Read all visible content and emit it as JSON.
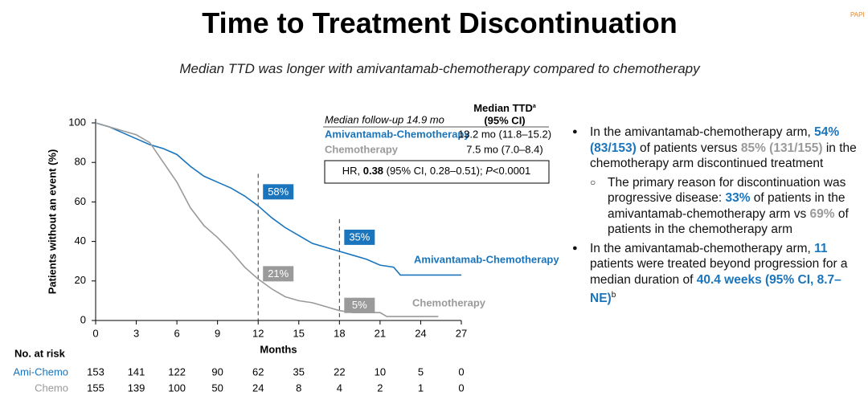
{
  "title": "Time to Treatment Discontinuation",
  "subtitle": "Median TTD was longer with amivantamab-chemotherapy compared to chemotherapy",
  "logo": "PAPI",
  "chart_data": {
    "type": "line",
    "y_label": "Patients without an event (%)",
    "x_label": "Months",
    "xlim": [
      0,
      27
    ],
    "xticks": [
      0,
      3,
      6,
      9,
      12,
      15,
      18,
      21,
      24,
      27
    ],
    "ylim": [
      0,
      100
    ],
    "yticks": [
      0,
      20,
      40,
      60,
      80,
      100
    ],
    "series": [
      {
        "name": "Amivantamab-Chemotherapy",
        "color": "#1a75bc",
        "x": [
          0,
          1,
          2,
          3,
          4,
          5,
          6,
          7,
          8,
          9,
          10,
          11,
          12,
          13,
          14,
          15,
          16,
          17,
          18,
          19,
          20,
          21,
          22,
          22.5,
          27
        ],
        "values": [
          100,
          98,
          95,
          92,
          89,
          87,
          84,
          78,
          73,
          70,
          67,
          63,
          58,
          52,
          47,
          43,
          39,
          37,
          35,
          33,
          31,
          28,
          27,
          23,
          23
        ]
      },
      {
        "name": "Chemotherapy",
        "color": "#9a9a9a",
        "x": [
          0,
          1,
          2,
          3,
          4,
          5,
          6,
          7,
          8,
          9,
          10,
          11,
          12,
          13,
          14,
          15,
          16,
          17,
          18,
          19,
          21,
          21.5,
          25.3
        ],
        "values": [
          100,
          98,
          96,
          94,
          90,
          80,
          70,
          57,
          48,
          42,
          35,
          27,
          21,
          16,
          12,
          10,
          9,
          7,
          5,
          4,
          4,
          2,
          2
        ]
      }
    ],
    "landmarks": {
      "x": [
        12,
        18
      ],
      "series": [
        {
          "values": [
            58,
            35
          ],
          "value_labels": [
            "58%",
            "35%"
          ]
        },
        {
          "values": [
            21,
            5
          ],
          "value_labels": [
            "21%",
            "5%"
          ]
        }
      ]
    },
    "median_table": {
      "follow_up": "Median follow-up 14.9 mo",
      "header": "Median TTD",
      "header_sup": "a",
      "header_ci": "(95% CI)",
      "rows": [
        {
          "name": "Amivantamab-Chemotherapy",
          "value": "13.2 mo (11.8–15.2)"
        },
        {
          "name": "Chemotherapy",
          "value": "7.5 mo (7.0–8.4)"
        }
      ]
    },
    "hr": {
      "prefix": "HR, ",
      "value": "0.38",
      "ci": " (95% CI, 0.28–0.51); ",
      "p": "P",
      "p_value": "<0.0001"
    },
    "risk_table": {
      "title": "No. at risk",
      "rows": [
        {
          "label": "Ami-Chemo",
          "values": [
            153,
            141,
            122,
            90,
            62,
            35,
            22,
            10,
            5,
            0
          ]
        },
        {
          "label": "Chemo",
          "values": [
            155,
            139,
            100,
            50,
            24,
            8,
            4,
            2,
            1,
            0
          ]
        }
      ]
    }
  },
  "bullets": [
    {
      "segments": [
        {
          "text": "In the amivantamab-chemotherapy arm, "
        },
        {
          "text": "54% (83/153)",
          "color": "#1a75bc"
        },
        {
          "text": " of patients versus "
        },
        {
          "text": "85% (131/155)",
          "color": "#9a9a9a"
        },
        {
          "text": " in the chemotherapy arm discontinued treatment"
        }
      ],
      "sub": [
        {
          "segments": [
            {
              "text": "The primary reason for discontinuation was progressive disease: "
            },
            {
              "text": "33%",
              "color": "#1a75bc"
            },
            {
              "text": " of patients in the amivantamab-chemotherapy arm vs "
            },
            {
              "text": "69%",
              "color": "#9a9a9a"
            },
            {
              "text": " of patients in the chemotherapy arm"
            }
          ]
        }
      ]
    },
    {
      "segments": [
        {
          "text": "In the amivantamab-chemotherapy arm, "
        },
        {
          "text": "11",
          "color": "#1a75bc"
        },
        {
          "text": " patients were treated beyond progression for a median duration of "
        },
        {
          "text": "40.4 weeks (95% CI, 8.7–NE)",
          "color": "#1a75bc"
        }
      ],
      "sup": "b"
    }
  ]
}
